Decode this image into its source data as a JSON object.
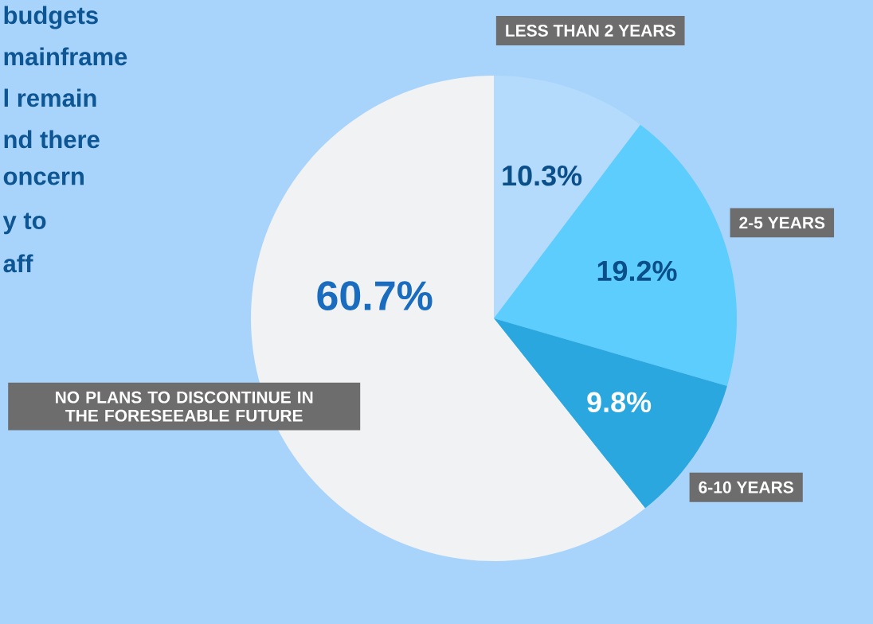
{
  "chart_data": {
    "type": "pie",
    "categories": [
      "LESS THAN 2 YEARS",
      "2-5 YEARS",
      "6-10 YEARS",
      "NO PLANS TO DISCONTINUE IN THE FORESEEABLE FUTURE"
    ],
    "values": [
      10.3,
      19.2,
      9.8,
      60.7
    ],
    "colors": [
      "#b5dbfc",
      "#5dcdfd",
      "#2aa7df",
      "#f1f2f4"
    ],
    "data_labels": true,
    "value_labels": [
      "10.3%",
      "19.2%",
      "9.8%",
      "60.7%"
    ],
    "annotations": [
      "budgets",
      "mainframe",
      "l remain",
      "nd there",
      "oncern",
      "y to",
      "aff"
    ]
  }
}
